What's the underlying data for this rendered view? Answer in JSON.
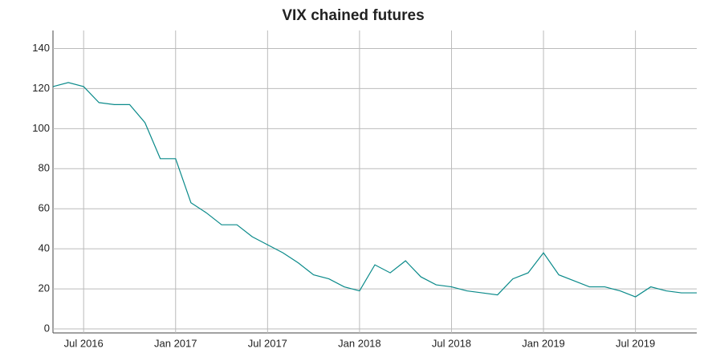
{
  "chart_data": {
    "type": "line",
    "title": "VIX chained futures",
    "x": [
      "2016-05",
      "2016-06",
      "2016-07",
      "2016-08",
      "2016-09",
      "2016-10",
      "2016-11",
      "2016-12",
      "2017-01",
      "2017-02",
      "2017-03",
      "2017-04",
      "2017-05",
      "2017-06",
      "2017-07",
      "2017-08",
      "2017-09",
      "2017-10",
      "2017-11",
      "2017-12",
      "2018-01",
      "2018-02",
      "2018-03",
      "2018-04",
      "2018-05",
      "2018-06",
      "2018-07",
      "2018-08",
      "2018-09",
      "2018-10",
      "2018-11",
      "2018-12",
      "2019-01",
      "2019-02",
      "2019-03",
      "2019-04",
      "2019-05",
      "2019-06",
      "2019-07",
      "2019-08",
      "2019-09",
      "2019-10",
      "2019-11"
    ],
    "series": [
      {
        "color": "#0a8a8a",
        "values": [
          121,
          123,
          121,
          113,
          112,
          112,
          103,
          85,
          85,
          63,
          58,
          52,
          52,
          46,
          42,
          38,
          33,
          27,
          25,
          21,
          19,
          32,
          28,
          34,
          26,
          22,
          21,
          19,
          18,
          17,
          25,
          28,
          38,
          27,
          24,
          21,
          21,
          19,
          16,
          21,
          19,
          18,
          18
        ]
      }
    ],
    "xlim": [
      "2016-05",
      "2019-11"
    ],
    "xticks": [
      {
        "value": "2016-07",
        "label": "Jul 2016"
      },
      {
        "value": "2017-01",
        "label": "Jan 2017"
      },
      {
        "value": "2017-07",
        "label": "Jul 2017"
      },
      {
        "value": "2018-01",
        "label": "Jan 2018"
      },
      {
        "value": "2018-07",
        "label": "Jul 2018"
      },
      {
        "value": "2019-01",
        "label": "Jan 2019"
      },
      {
        "value": "2019-07",
        "label": "Jul 2019"
      }
    ],
    "ylim": [
      -2,
      149
    ],
    "yticks": [
      0,
      20,
      40,
      60,
      80,
      100,
      120,
      140
    ],
    "grid": true
  }
}
